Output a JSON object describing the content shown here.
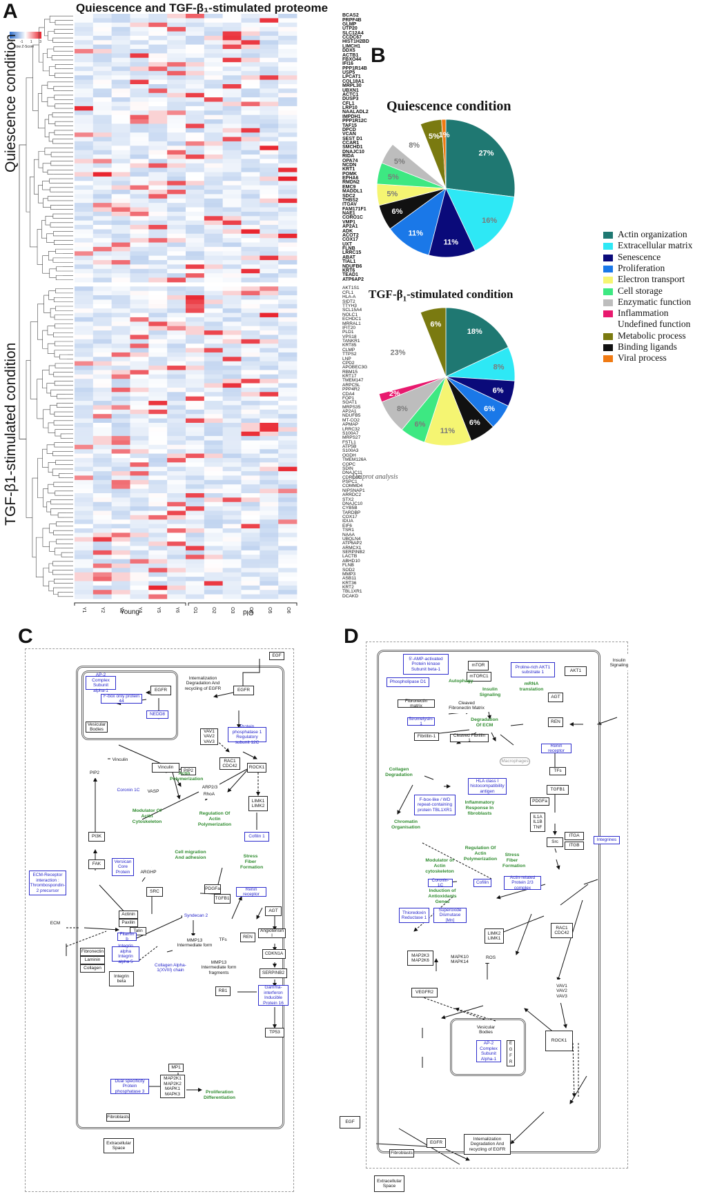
{
  "panels": {
    "a": "A",
    "b": "B",
    "c": "C",
    "d": "D"
  },
  "heatmap": {
    "title": "Quiescence and TGF-β₁-stimulated proteome",
    "colorkey_label": "Row Z-Score",
    "colorkey_ticks": [
      "-3",
      "-1",
      "1",
      "3"
    ],
    "side_labels": {
      "top": "Quiescence condition",
      "bottom": "TGF-β1-stimulated condition"
    },
    "groups": {
      "young": "Young",
      "old": "Old"
    },
    "columns": [
      "Y1",
      "Y2",
      "Y3",
      "Y4",
      "Y5",
      "Y6",
      "O1",
      "O2",
      "O3",
      "O4",
      "O5",
      "O6"
    ],
    "quiescence_rows": [
      "BCAS2",
      "PRPF4B",
      "GLMP",
      "UTP20",
      "SLC12A4",
      "CCDC67",
      "HIST1H2BD",
      "LIMCH1",
      "DDX5",
      "ACTB1",
      "FBXO44",
      "IFI16",
      "PPP1R14B",
      "USP5",
      "LPCAT1",
      "COL18A1",
      "MRPL30",
      "UBXN1",
      "ACTC1",
      "DUSP3",
      "CFL1",
      "LRP10",
      "NAALADL2",
      "IMPDH1",
      "PPP1R12C",
      "TAF15",
      "DPCD",
      "VCAN",
      "SEST D1",
      "CCAR1",
      "SMCHD1",
      "DNAJC10",
      "RIDA",
      "OPA74",
      "NCDN",
      "KRT1",
      "POMK",
      "EPHA6",
      "RMDN2",
      "EMC9",
      "MADDL1",
      "SDC2",
      "THBS2",
      "ITGAV",
      "FAM171F1",
      "NAE1",
      "CORO1C",
      "VMP1",
      "AP2A1",
      "ADK",
      "ACOT2",
      "COX17",
      "UXT",
      "FLNB",
      "LRRC15",
      "ABAT",
      "TIAL1",
      "NDUFB6",
      "KRT6",
      "TEAD1",
      "ATP6AP2"
    ],
    "tgf_rows": [
      "AKT1S1",
      "CFL1",
      "HLA-A",
      "SIDT2",
      "TTYH3",
      "SCL15A4",
      "NOLC1",
      "ECHDC1",
      "MRRAL1",
      "IFIT20",
      "PLD1",
      "VPS18",
      "TANKR1",
      "KRT85",
      "CLMP",
      "TTPS2",
      "LNP",
      "CPD2",
      "APOBEC3G",
      "RBM15",
      "KRT17",
      "TMEM147",
      "ARPC5L",
      "PPP4R2",
      "CDA4",
      "FOP1",
      "SOAT1",
      "MRPS35",
      "AP2A1",
      "NDUFB5",
      "MT-CO2",
      "APMAP",
      "LRRC32",
      "S100A7",
      "MRPS27",
      "FSTL1",
      "ATP5B",
      "S100A3",
      "OGDH",
      "TMEM126A",
      "COPC",
      "SDIN",
      "DNAJC11",
      "CDRD1C",
      "PSPC1",
      "COMMD4",
      "NIPSNAP1",
      "ARRDC2",
      "STX2",
      "DNAJC10",
      "CYB5B",
      "TARDBP",
      "COX17",
      "IDUA",
      "EIF6",
      "TSR1",
      "NAAA",
      "UBQLN4",
      "ATP6AP2",
      "ARMCX1",
      "SERPINB2",
      "LACTB",
      "ABHD10",
      "FLNB",
      "SOD2",
      "MMP3",
      "ASB11",
      "KRT36",
      "KRT2",
      "TBL1XR1",
      "DCAKD"
    ]
  },
  "pies": {
    "title_q": "Quiescence condition",
    "title_t_prefix": "TGF-β",
    "title_t_sub": "1",
    "title_t_suffix": "-stimulated condition",
    "source": "Uniprot analysis",
    "legend": [
      {
        "label": "Actin organization",
        "color": "#1f7872"
      },
      {
        "label": "Extracellular matrix",
        "color": "#2ee8f5"
      },
      {
        "label": "Senescence",
        "color": "#0a0a7a"
      },
      {
        "label": "Proliferation",
        "color": "#1a78e8"
      },
      {
        "label": "Electron transport",
        "color": "#f5f572"
      },
      {
        "label": "Cell storage",
        "color": "#3de882"
      },
      {
        "label": "Enzymatic function",
        "color": "#bdbdbd"
      },
      {
        "label": "Inflammation",
        "color": "#e8196e"
      },
      {
        "label": "Undefined function",
        "color": "#ffffff"
      },
      {
        "label": "Metabolic process",
        "color": "#7a7a10"
      },
      {
        "label": "Binding ligands",
        "color": "#111111"
      },
      {
        "label": "Viral process",
        "color": "#f07a12"
      }
    ]
  },
  "pathway_c": {
    "nodes": {
      "egf": "EGF",
      "egfr_in": "EGFR",
      "egfr_out": "EGFR",
      "intern": "Internalization Degradation And recycling of EGFR",
      "ap2": "AP-2 Complex Subunit alpha-1",
      "fbox": "F-box only protein 44",
      "nedd8": "NEDD8",
      "vesicular": "Vesicular Bodies",
      "vav": "VAV1 VAV2 VAV3",
      "ppp1": "Protein phosphatase 1 Regulatory subunit 12C",
      "vinc1": "Vinculin",
      "vinc2": "Vinculin",
      "pip2a": "PIP2",
      "vasp": "VASP",
      "arp": "ARP2/3",
      "rac1": "RAC1 CDC42",
      "rock1": "ROCK1",
      "pip2b": "PIP2",
      "coronin": "Coronin 1C",
      "rhoa": "RhoA",
      "limk": "LIMK1 LIMK2",
      "cofilin": "Cofilin 1",
      "pi3k": "PI3K",
      "fak": "FAK",
      "versican": "Versican Core Protein",
      "arghp": "ARGHP",
      "src": "SRC",
      "ecm_rec": "ECM-Receptor interaction : Thrombospondin-2 precursor",
      "ecm": "ECM",
      "actinin": "Actinin",
      "paxilin": "Paxilin",
      "talin": "Talin",
      "filamin": "Filamin b",
      "fibronectin": "Fibronectin",
      "laminin": "Laminin",
      "collagen": "Collagen",
      "integrin": "Integrin alpha Integrin alpha 5",
      "integrin_beta": "Integrin beta",
      "syndecan": "Syndecan 2",
      "pdgfa": "PDGFa",
      "tgfb1": "TGFB1",
      "renin_rec": "Renin receptor",
      "mmp13a": "MMP13 Intermediate form",
      "mmp13b": "MMP13 Intermediate form fragments",
      "col18": "Collagen Alpha-1(XVIII) chain",
      "tfs": "TFs",
      "ren": "REN",
      "agt": "AGT",
      "ang": "Angiotensin I",
      "cdkn1a": "CDKN1A",
      "serpinb2": "SERPINB2",
      "rb1": "RB1",
      "gamma": "Gamma-interferon Inducible Protein 16",
      "tp53": "TP53",
      "dusp": "Dual specificity Protein phosphatase 3",
      "mp1": "MP1",
      "mapk": "MAP2K1 MAP2K2 MAPK1 MAPK3",
      "fibroblasts": "Fibroblasts",
      "extracellular": "Extracellular Space"
    },
    "green": {
      "actin_poly": "Actin Polymerization",
      "modulator": "Modulator Of Actin Cytoskeleton",
      "regulation": "Regulation Of Actin Polymerization",
      "migration": "Cell migration And adhesion",
      "stress": "Stress Fiber Formation",
      "prolif": "Proliferation Differentiation"
    }
  },
  "pathway_d": {
    "nodes": {
      "ampk": "5'-AMP-activated Protein kinase Subunit beta-1",
      "mtor": "mTOR",
      "mtorc1": "mTORC1",
      "pras": "Proline-rich AKT1 substrate 1",
      "akt1": "AKT1",
      "insulin": "Insulin Signaling",
      "plcd": "Phospholipase D1",
      "fibmatrix": "Fibronectin matrix",
      "cleaved_fib": "Cleaved Fibronectin Matrix",
      "stromelysin": "Stromelysin-1",
      "fibrillin": "Fibrillin-1",
      "cleaved_fibr": "Cleaved Fibrillin 1",
      "agt": "AGT",
      "ren": "REN",
      "renin_rec": "Renin receptor",
      "macrophages": "Macrophages",
      "tfs": "TFs",
      "hla": "HLA class I histocompatibility antigen",
      "tgfb1": "TGFB1",
      "pdgfa": "PDGFa",
      "fbxl": "F-box-like / WD repeat-containing protein TBL1XR1",
      "il": "IL1A IL1B TNF",
      "src": "Src",
      "itga": "ITGA",
      "itgb": "ITGB",
      "integrines": "Integrines",
      "coronin": "Coronin-1C",
      "cofilin": "Cofilin",
      "arp": "Actin-related Protein 2/3 complex",
      "thioredoxin": "Thioredoxin Reductase 1",
      "sod": "Superoxide Dismutase [Mn]",
      "limk": "LIMK2 LIMK1",
      "rac1": "RAC1 CDC42",
      "mapk2k": "MAP2K3 MAP2K6",
      "mapk10": "MAPK10 MAPK14",
      "ros": "ROS",
      "vegfr2": "VEGFR2",
      "vav": "VAV1 VAV2 VAV3",
      "vesicular": "Vesicular Bodies",
      "ap2": "AP-2 Complex Subunit Alpha-1",
      "egfr_box": "EGFR",
      "rock1": "ROCK1",
      "egf": "EGF",
      "egfr": "EGFR",
      "intern": "Internalization Degradation And recycling of EGFR",
      "fibroblasts": "Fibroblasts",
      "extracellular": "Extracellular Space"
    },
    "green": {
      "autophagy": "Autophagy",
      "insulin_sig": "Insulin Signaling",
      "mrna": "mRNA translation",
      "deg_ecm": "Degradation Of ECM",
      "collagen_deg": "Collagen Degradation",
      "inflam": "Inflammatory Response In fibroblasts",
      "chromatin": "Chromatin Organisation",
      "regulation": "Regulation Of Actin Polymerization",
      "modulator": "Modulator of Actin cytoskeleton",
      "stress": "Stress Fiber Formation",
      "antiox": "Induction of Antioxidants Genes"
    }
  },
  "chart_data": [
    {
      "type": "heatmap",
      "title": "Quiescence and TGF-β₁-stimulated proteome",
      "xlabel": "",
      "ylabel": "",
      "x_groups": [
        "Young",
        "Old"
      ],
      "columns": [
        "Y1",
        "Y2",
        "Y3",
        "Y4",
        "Y5",
        "Y6",
        "O1",
        "O2",
        "O3",
        "O4",
        "O5",
        "O6"
      ],
      "scale": {
        "label": "Row Z-Score",
        "min": -3,
        "max": 3,
        "low_color": "#2f6fcc",
        "mid_color": "#ffffff",
        "high_color": "#e8202a"
      },
      "row_groups": [
        "Quiescence condition",
        "TGF-β1-stimulated condition"
      ]
    },
    {
      "type": "pie",
      "title": "Quiescence condition",
      "slices": [
        {
          "label": "Actin organization",
          "value": 27
        },
        {
          "label": "Extracellular matrix",
          "value": 16
        },
        {
          "label": "Senescence",
          "value": 11
        },
        {
          "label": "Proliferation",
          "value": 11
        },
        {
          "label": "Binding ligands",
          "value": 6
        },
        {
          "label": "Electron transport",
          "value": 5
        },
        {
          "label": "Cell storage",
          "value": 5
        },
        {
          "label": "Enzymatic function",
          "value": 5
        },
        {
          "label": "Undefined function",
          "value": 8
        },
        {
          "label": "Metabolic process",
          "value": 5
        },
        {
          "label": "Viral process",
          "value": 1
        }
      ]
    },
    {
      "type": "pie",
      "title": "TGF-β1-stimulated condition",
      "slices": [
        {
          "label": "Actin organization",
          "value": 18
        },
        {
          "label": "Extracellular matrix",
          "value": 8
        },
        {
          "label": "Senescence",
          "value": 6
        },
        {
          "label": "Proliferation",
          "value": 6
        },
        {
          "label": "Binding ligands",
          "value": 6
        },
        {
          "label": "Electron transport",
          "value": 11
        },
        {
          "label": "Cell storage",
          "value": 6
        },
        {
          "label": "Enzymatic function",
          "value": 8
        },
        {
          "label": "Inflammation",
          "value": 2
        },
        {
          "label": "Undefined function",
          "value": 23
        },
        {
          "label": "Metabolic process",
          "value": 6
        }
      ]
    }
  ]
}
